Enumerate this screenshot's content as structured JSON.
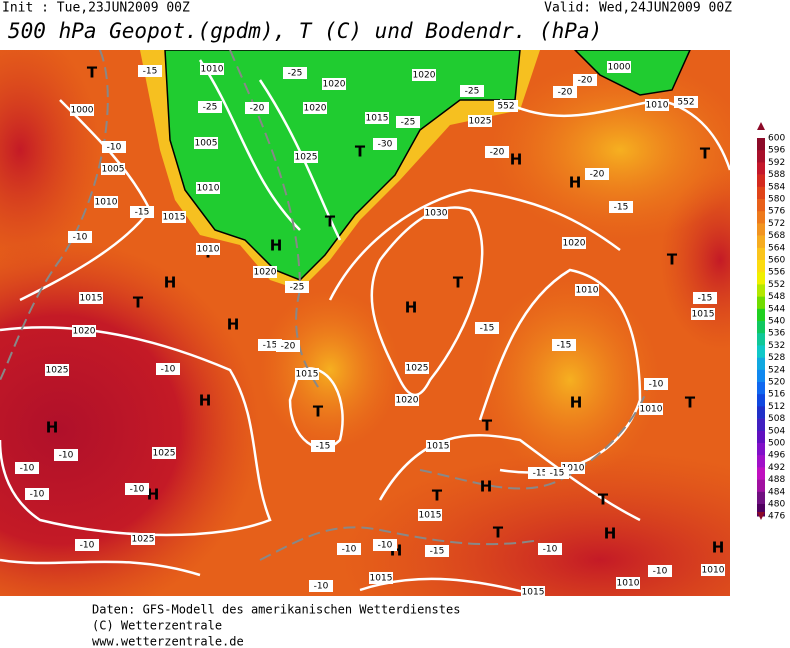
{
  "header": {
    "init": "Init : Tue,23JUN2009 00Z",
    "valid": "Valid: Wed,24JUN2009 00Z",
    "title": "500 hPa Geopot.(gpdm), T (C) und Bodendr. (hPa)"
  },
  "colorbar": {
    "labels": [
      600,
      596,
      592,
      588,
      584,
      580,
      576,
      572,
      568,
      564,
      560,
      556,
      552,
      548,
      544,
      540,
      536,
      532,
      528,
      524,
      520,
      516,
      512,
      508,
      504,
      500,
      496,
      492,
      488,
      484,
      480,
      476
    ],
    "colors": [
      "#8c0a28",
      "#a8102a",
      "#c4182a",
      "#d42a1e",
      "#e04418",
      "#e8601a",
      "#ee7a1c",
      "#f29420",
      "#f6ac20",
      "#fac41c",
      "#fcdc10",
      "#f0f000",
      "#b4e800",
      "#70dc00",
      "#20d020",
      "#10c860",
      "#10c898",
      "#10c8c8",
      "#10a8e0",
      "#1088f0",
      "#1068f0",
      "#1048e0",
      "#2030c8",
      "#4020c0",
      "#6010c0",
      "#8010c8",
      "#a010c8",
      "#c010c0",
      "#a010a0",
      "#701080",
      "#500060"
    ]
  },
  "map": {
    "labels": [
      "T",
      "T",
      "T",
      "T",
      "T",
      "T",
      "T",
      "T",
      "T",
      "T",
      "T",
      "T",
      "T",
      "T",
      "H",
      "H",
      "H",
      "H",
      "H",
      "H",
      "H",
      "H",
      "H",
      "H",
      "H",
      "H",
      "H",
      "H",
      "1000",
      "1005",
      "1010",
      "1015",
      "1010",
      "1020",
      "1015",
      "1020",
      "1025",
      "1025",
      "1025",
      "1015",
      "1025",
      "1020",
      "1015",
      "1010",
      "1015",
      "1015",
      "1015",
      "1010",
      "1010",
      "1010",
      "1010",
      "1020",
      "1030",
      "1025",
      "1015",
      "1020",
      "1025",
      "1020",
      "1020",
      "1010",
      "1005",
      "1010",
      "1000",
      "1010",
      "1015",
      "-15",
      "-25",
      "-20",
      "-25",
      "-30",
      "-25",
      "-25",
      "-20",
      "-20",
      "-15",
      "-10",
      "-15",
      "-10",
      "-15",
      "-20",
      "-25",
      "-10",
      "-15",
      "-15",
      "-15",
      "-10",
      "-10",
      "-10",
      "-10",
      "-10",
      "-10",
      "-10",
      "-10",
      "-15",
      "-10",
      "-10",
      "-10",
      "-15",
      "-15",
      "-15",
      "-20",
      "-20",
      "552",
      "552"
    ]
  },
  "footer": {
    "lines": [
      "Daten: GFS-Modell des amerikanischen Wetterdienstes",
      "(C) Wetterzentrale",
      "www.wetterzentrale.de"
    ]
  }
}
